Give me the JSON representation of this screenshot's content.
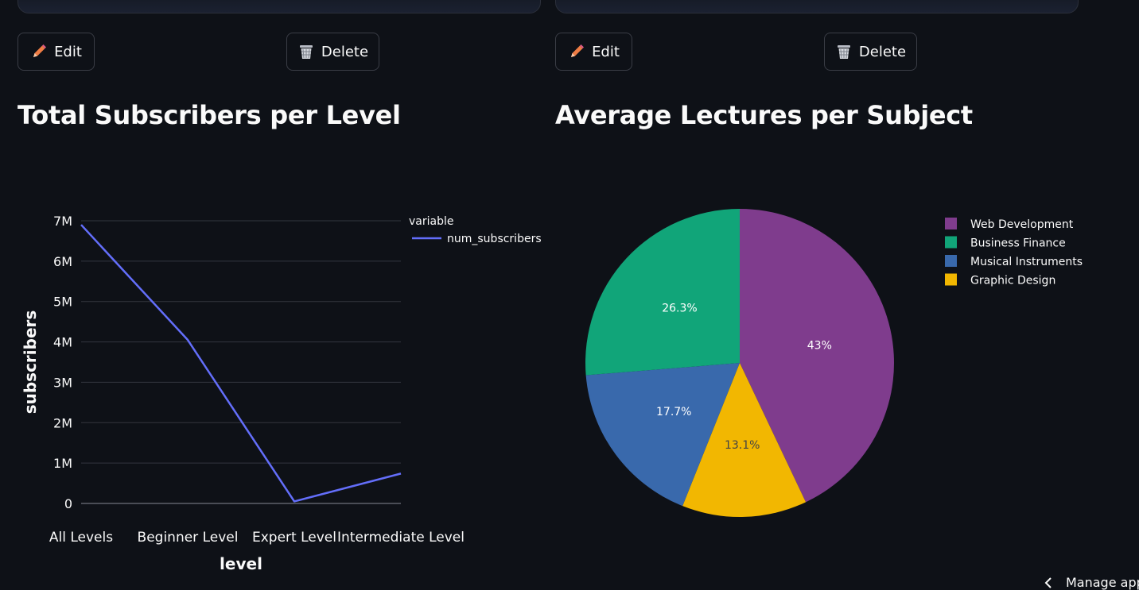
{
  "cards": [
    {
      "edit_label": "Edit",
      "delete_label": "Delete"
    },
    {
      "edit_label": "Edit",
      "delete_label": "Delete"
    }
  ],
  "line_panel": {
    "title": "Total Subscribers per Level"
  },
  "pie_panel": {
    "title": "Average Lectures per Subject"
  },
  "manage_app_label": "Manage app",
  "colors": {
    "background": "#0e1117",
    "line": "#636efa",
    "pencil": "#ef7d45",
    "web_development": "#7f3c8d",
    "business_finance": "#11a579",
    "musical_instruments": "#3969ac",
    "graphic_design": "#f2b701"
  },
  "icons": {
    "edit": "pencil-icon",
    "delete": "trash-icon",
    "manage": "chevron-left-icon"
  },
  "chart_data": [
    {
      "type": "line",
      "title": "Total Subscribers per Level",
      "categories": [
        "All Levels",
        "Beginner Level",
        "Expert Level",
        "Intermediate Level"
      ],
      "series": [
        {
          "name": "num_subscribers",
          "values": [
            6900000,
            4050000,
            50000,
            740000
          ]
        }
      ],
      "xlabel": "level",
      "ylabel": "subscribers",
      "ylim": [
        0,
        7000000
      ],
      "yticks": [
        {
          "value": 0,
          "label": "0"
        },
        {
          "value": 1000000,
          "label": "1M"
        },
        {
          "value": 2000000,
          "label": "2M"
        },
        {
          "value": 3000000,
          "label": "3M"
        },
        {
          "value": 4000000,
          "label": "4M"
        },
        {
          "value": 5000000,
          "label": "5M"
        },
        {
          "value": 6000000,
          "label": "6M"
        },
        {
          "value": 7000000,
          "label": "7M"
        }
      ],
      "legend_title": "variable",
      "legend_position": "right",
      "grid": true
    },
    {
      "type": "pie",
      "title": "Average Lectures per Subject",
      "slices": [
        {
          "label": "Web Development",
          "value": 43.0,
          "text": "43%"
        },
        {
          "label": "Graphic Design",
          "value": 13.1,
          "text": "13.1%"
        },
        {
          "label": "Musical Instruments",
          "value": 17.7,
          "text": "17.7%"
        },
        {
          "label": "Business Finance",
          "value": 26.3,
          "text": "26.3%"
        }
      ],
      "legend": [
        "Web Development",
        "Business Finance",
        "Musical Instruments",
        "Graphic Design"
      ],
      "legend_position": "right"
    }
  ]
}
